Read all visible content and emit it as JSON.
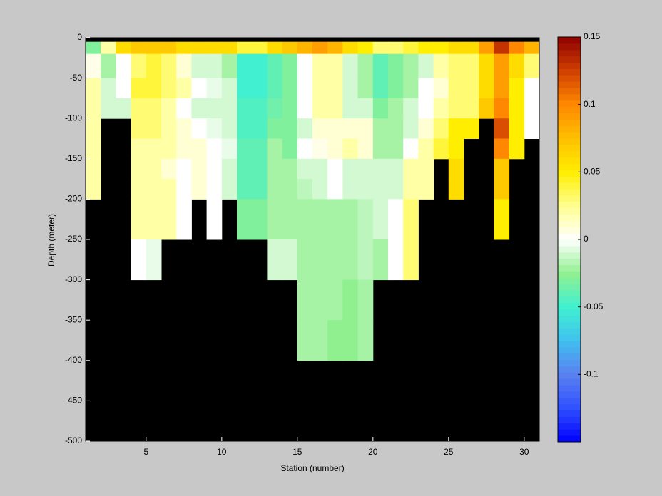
{
  "chart_data": {
    "type": "heatmap",
    "xlabel": "Station (number)",
    "ylabel": "Depth (meter)",
    "xlim": [
      1,
      31
    ],
    "ylim": [
      -500,
      0
    ],
    "xticks": [
      5,
      10,
      15,
      20,
      25,
      30
    ],
    "yticks": [
      -500,
      -450,
      -400,
      -350,
      -300,
      -250,
      -200,
      -150,
      -100,
      -50,
      0
    ],
    "x": [
      1,
      2,
      3,
      4,
      5,
      6,
      7,
      8,
      9,
      10,
      11,
      12,
      13,
      14,
      15,
      16,
      17,
      18,
      19,
      20,
      21,
      22,
      23,
      24,
      25,
      26,
      27,
      28,
      29,
      30,
      31
    ],
    "y": [
      -5,
      -20,
      -50,
      -75,
      -100,
      -125,
      -150,
      -175,
      -200,
      -250,
      -300,
      -350,
      -400
    ],
    "background": "#000000",
    "clim": [
      -0.15,
      0.15
    ],
    "cticks": [
      -0.1,
      -0.05,
      0,
      0.05,
      0.1,
      0.15
    ],
    "colormap": [
      "#0000ff",
      "#3050ff",
      "#5a80f0",
      "#40c0f0",
      "#40f0d0",
      "#90f090",
      "#ffffff",
      "#ffff90",
      "#ffee00",
      "#ffc000",
      "#ff8800",
      "#d04000",
      "#900000"
    ],
    "z": [
      [
        -0.03,
        0.02,
        0.06,
        0.07,
        0.07,
        0.07,
        0.06,
        0.06,
        0.06,
        0.06,
        0.04,
        0.04,
        0.06,
        0.07,
        0.08,
        0.09,
        0.08,
        0.06,
        0.05,
        0.03,
        0.03,
        0.04,
        0.05,
        0.05,
        0.06,
        0.06,
        0.09,
        0.13,
        0.1,
        0.08
      ],
      [
        0.005,
        -0.02,
        0,
        0.03,
        0.04,
        0.03,
        0.01,
        -0.01,
        -0.01,
        -0.02,
        -0.05,
        -0.05,
        -0.04,
        -0.03,
        0,
        0.02,
        0.02,
        -0.01,
        -0.02,
        -0.04,
        -0.03,
        -0.02,
        -0.01,
        0.02,
        0.03,
        0.03,
        0.06,
        0.09,
        0.06,
        0.03
      ],
      [
        0.02,
        -0.01,
        0,
        0.04,
        0.04,
        0.03,
        0.02,
        0,
        -0.005,
        -0.01,
        -0.05,
        -0.05,
        -0.04,
        -0.03,
        0,
        0.02,
        0.02,
        -0.01,
        -0.02,
        -0.04,
        -0.03,
        -0.02,
        0,
        0.01,
        0.03,
        0.03,
        0.06,
        0.09,
        0.05,
        0
      ],
      [
        0.02,
        -0.01,
        -0.01,
        0.03,
        0.03,
        0.02,
        0,
        -0.01,
        -0.01,
        -0.01,
        -0.045,
        -0.045,
        -0.035,
        -0.03,
        0,
        0.02,
        0.02,
        -0.01,
        -0.01,
        -0.03,
        -0.02,
        -0.01,
        0,
        0.02,
        0.03,
        0.03,
        0.07,
        0.1,
        0.05,
        0
      ],
      [
        0.02,
        null,
        null,
        0.03,
        0.03,
        0.02,
        0.01,
        0,
        -0.005,
        -0.01,
        -0.045,
        -0.045,
        -0.03,
        -0.03,
        -0.01,
        0.01,
        0.01,
        0.01,
        0.01,
        -0.02,
        -0.02,
        -0.01,
        0.01,
        0.03,
        0.05,
        0.05,
        null,
        0.12,
        0.05,
        0
      ],
      [
        0.02,
        null,
        null,
        0.02,
        0.02,
        0.02,
        0.01,
        0.01,
        0,
        -0.005,
        -0.04,
        -0.04,
        -0.02,
        -0.03,
        0,
        0.005,
        0.01,
        0.02,
        0.01,
        -0.02,
        -0.02,
        0,
        0.02,
        0.04,
        0.05,
        null,
        null,
        0.1,
        0.05,
        null
      ],
      [
        0.02,
        null,
        null,
        0.02,
        0.02,
        0.01,
        0,
        0.01,
        0,
        -0.01,
        -0.04,
        -0.04,
        -0.02,
        -0.02,
        -0.01,
        -0.01,
        0,
        -0.01,
        -0.01,
        -0.01,
        -0.01,
        0.02,
        0.02,
        null,
        0.06,
        null,
        null,
        0.07,
        null,
        null
      ],
      [
        0.02,
        null,
        null,
        0.02,
        0.02,
        0.02,
        0,
        0.01,
        0,
        -0.01,
        -0.04,
        -0.04,
        -0.02,
        -0.02,
        -0.015,
        -0.01,
        0,
        -0.01,
        -0.01,
        -0.01,
        -0.01,
        0.02,
        0.02,
        null,
        0.06,
        null,
        null,
        0.07,
        null,
        null
      ],
      [
        null,
        null,
        null,
        0.02,
        0.02,
        0.02,
        0,
        null,
        0,
        null,
        -0.03,
        -0.03,
        -0.02,
        -0.02,
        -0.02,
        -0.02,
        -0.02,
        -0.02,
        -0.015,
        -0.01,
        0,
        0.03,
        null,
        null,
        null,
        null,
        null,
        0.05,
        null,
        null
      ],
      [
        null,
        null,
        null,
        0,
        -0.005,
        null,
        null,
        null,
        null,
        null,
        null,
        null,
        -0.01,
        -0.01,
        -0.02,
        -0.02,
        -0.02,
        -0.02,
        -0.015,
        -0.02,
        0,
        0.03,
        null,
        null,
        null,
        null,
        null,
        null,
        null,
        null
      ],
      [
        null,
        null,
        null,
        null,
        null,
        null,
        null,
        null,
        null,
        null,
        null,
        null,
        null,
        null,
        -0.02,
        -0.02,
        -0.02,
        -0.025,
        -0.02,
        null,
        null,
        null,
        null,
        null,
        null,
        null,
        null,
        null,
        null,
        null
      ],
      [
        null,
        null,
        null,
        null,
        null,
        null,
        null,
        null,
        null,
        null,
        null,
        null,
        null,
        null,
        -0.02,
        -0.02,
        -0.025,
        -0.025,
        -0.02,
        null,
        null,
        null,
        null,
        null,
        null,
        null,
        null,
        null,
        null,
        null
      ]
    ]
  }
}
